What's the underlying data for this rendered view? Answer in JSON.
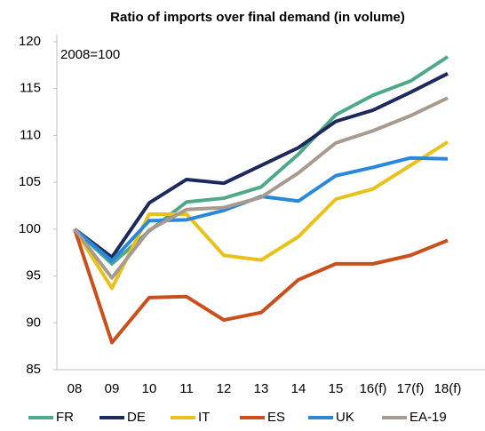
{
  "chart_data": {
    "type": "line",
    "title": "Ratio of imports over final demand (in volume)",
    "annotation": "2008=100",
    "categories": [
      "08",
      "09",
      "10",
      "11",
      "12",
      "13",
      "14",
      "15",
      "16(f)",
      "17(f)",
      "18(f)"
    ],
    "series": [
      {
        "name": "FR",
        "color": "#4fa88a",
        "values": [
          100,
          96.3,
          99.8,
          102.9,
          103.3,
          104.5,
          108,
          112.2,
          114.3,
          115.8,
          118.4
        ]
      },
      {
        "name": "DE",
        "color": "#1f2a5c",
        "values": [
          100,
          97,
          102.8,
          105.3,
          104.9,
          106.8,
          108.7,
          111.5,
          112.7,
          114.6,
          116.6
        ]
      },
      {
        "name": "IT",
        "color": "#e8c21a",
        "values": [
          100,
          93.7,
          101.6,
          101.6,
          97.2,
          96.7,
          99.2,
          103.2,
          104.3,
          106.8,
          109.3
        ]
      },
      {
        "name": "ES",
        "color": "#c9501c",
        "values": [
          100,
          87.9,
          92.7,
          92.8,
          90.3,
          91.1,
          94.6,
          96.3,
          96.3,
          97.2,
          98.8
        ]
      },
      {
        "name": "UK",
        "color": "#2a88d8",
        "values": [
          100,
          96.6,
          100.9,
          101,
          102,
          103.5,
          103,
          105.7,
          106.6,
          107.6,
          107.5
        ]
      },
      {
        "name": "EA-19",
        "color": "#a89a8f",
        "values": [
          100,
          94.8,
          99.9,
          102.1,
          102.3,
          103.4,
          106,
          109.2,
          110.5,
          112.1,
          114
        ]
      }
    ],
    "ylim": [
      85,
      120
    ],
    "yticks": [
      85,
      90,
      95,
      100,
      105,
      110,
      115,
      120
    ],
    "grid": false,
    "legend": "bottom"
  }
}
